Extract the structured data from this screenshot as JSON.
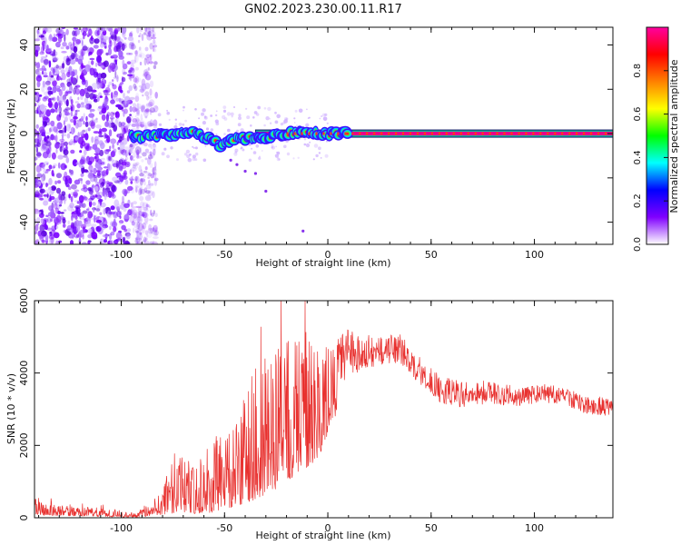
{
  "figure": {
    "title": "GN02.2023.230.00.11.R17"
  },
  "chart_data": [
    {
      "type": "heatmap",
      "xlabel": "Height of straight line (km)",
      "ylabel": "Frequency (Hz)",
      "xlim": [
        -142,
        138
      ],
      "ylim": [
        -50,
        48
      ],
      "xticks": [
        -100,
        -50,
        0,
        50,
        100
      ],
      "yticks": [
        -40,
        -20,
        0,
        20,
        40
      ],
      "grid": false,
      "colorbar": {
        "label": "Normalized spectral amplitude",
        "range": [
          0,
          1
        ],
        "ticks": [
          0.0,
          0.2,
          0.4,
          0.6,
          0.8
        ],
        "colors": [
          "#ffffff",
          "#8000ff",
          "#0000ff",
          "#00ffff",
          "#00ff00",
          "#ffff00",
          "#ff8000",
          "#ff0000",
          "#ff00a0"
        ]
      },
      "features": {
        "noise_region_x": [
          -142,
          -95
        ],
        "carrier_line": {
          "x": [
            -95,
            138
          ],
          "y": 0
        },
        "high_amplitude_from_x": -20,
        "track_points": [
          {
            "x": -95,
            "y": -1.5
          },
          {
            "x": -85,
            "y": -1
          },
          {
            "x": -75,
            "y": -0.5
          },
          {
            "x": -65,
            "y": 0
          },
          {
            "x": -58,
            "y": -2
          },
          {
            "x": -52,
            "y": -5
          },
          {
            "x": -48,
            "y": -3
          },
          {
            "x": -40,
            "y": -2
          },
          {
            "x": -30,
            "y": -1.5
          },
          {
            "x": -20,
            "y": 0
          },
          {
            "x": -12,
            "y": 1
          },
          {
            "x": 0,
            "y": 0
          }
        ]
      }
    },
    {
      "type": "line",
      "xlabel": "Height of straight line (km)",
      "ylabel": "SNR (10 * v/v)",
      "xlim": [
        -142,
        138
      ],
      "ylim": [
        0,
        6000
      ],
      "xticks": [
        -100,
        -50,
        0,
        50,
        100
      ],
      "yticks": [
        0,
        2000,
        4000,
        6000
      ],
      "grid": false,
      "series": [
        {
          "color": "#e8312f",
          "envelope": [
            {
              "x": -142,
              "low": 80,
              "high": 650
            },
            {
              "x": -130,
              "low": 60,
              "high": 400
            },
            {
              "x": -115,
              "low": 40,
              "high": 330
            },
            {
              "x": -100,
              "low": 20,
              "high": 260
            },
            {
              "x": -92,
              "low": 10,
              "high": 150
            },
            {
              "x": -85,
              "low": 60,
              "high": 500
            },
            {
              "x": -78,
              "low": 100,
              "high": 1300
            },
            {
              "x": -70,
              "low": 150,
              "high": 2000
            },
            {
              "x": -62,
              "low": 100,
              "high": 1800
            },
            {
              "x": -55,
              "low": 150,
              "high": 2500
            },
            {
              "x": -45,
              "low": 300,
              "high": 3000
            },
            {
              "x": -35,
              "low": 500,
              "high": 4600
            },
            {
              "x": -25,
              "low": 800,
              "high": 5200
            },
            {
              "x": -15,
              "low": 1200,
              "high": 6000
            },
            {
              "x": -5,
              "low": 1600,
              "high": 5000
            },
            {
              "x": 5,
              "low": 3000,
              "high": 5300
            },
            {
              "x": 15,
              "low": 3700,
              "high": 5100
            },
            {
              "x": 25,
              "low": 3900,
              "high": 5000
            },
            {
              "x": 35,
              "low": 4000,
              "high": 5100
            },
            {
              "x": 45,
              "low": 3400,
              "high": 4400
            },
            {
              "x": 55,
              "low": 2900,
              "high": 3900
            },
            {
              "x": 65,
              "low": 2800,
              "high": 3800
            },
            {
              "x": 75,
              "low": 2900,
              "high": 3800
            },
            {
              "x": 85,
              "low": 2900,
              "high": 3700
            },
            {
              "x": 95,
              "low": 2900,
              "high": 3600
            },
            {
              "x": 105,
              "low": 3000,
              "high": 3700
            },
            {
              "x": 115,
              "low": 2900,
              "high": 3600
            },
            {
              "x": 125,
              "low": 2700,
              "high": 3400
            },
            {
              "x": 138,
              "low": 2600,
              "high": 3300
            }
          ]
        }
      ]
    }
  ]
}
